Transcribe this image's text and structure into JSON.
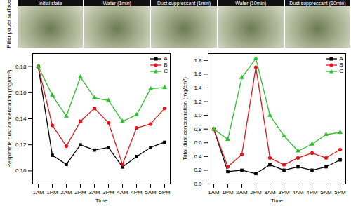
{
  "panel_label": "Filter paper surface",
  "photos": [
    "Initial state",
    "Water (1min)",
    "Dust suppressant (1min)",
    "Water (10min)",
    "Dust suppressant (10min)"
  ],
  "chart_data": [
    {
      "type": "line",
      "x_label": "Time",
      "y_label": "Respirable dust concentration (mg/cm³)",
      "categories": [
        "1AM",
        "1PM",
        "2AM",
        "2PM",
        "3AM",
        "3PM",
        "4AM",
        "4PM",
        "5AM",
        "5PM"
      ],
      "series": [
        {
          "name": "A",
          "color": "#000000",
          "marker": "square",
          "values": [
            0.18,
            0.112,
            0.105,
            0.12,
            0.116,
            0.118,
            0.103,
            0.111,
            0.118,
            0.122
          ]
        },
        {
          "name": "B",
          "color": "#e3161b",
          "marker": "circle",
          "values": [
            0.18,
            0.135,
            0.119,
            0.138,
            0.148,
            0.137,
            0.105,
            0.133,
            0.136,
            0.148
          ]
        },
        {
          "name": "C",
          "color": "#2fbf2f",
          "marker": "triangle",
          "values": [
            0.18,
            0.158,
            0.142,
            0.172,
            0.156,
            0.154,
            0.138,
            0.143,
            0.163,
            0.164
          ]
        }
      ],
      "ylim": [
        0.09,
        0.19
      ],
      "yticks": [
        {
          "value": 0.1,
          "label": "0.10"
        },
        0.12,
        0.14,
        0.16,
        0.18
      ],
      "grid": false,
      "legend": "top-right"
    },
    {
      "type": "line",
      "x_label": "Time",
      "y_label": "Total dust concentration (mg/cm³)",
      "categories": [
        "1AM",
        "1PM",
        "2AM",
        "2PM",
        "3AM",
        "3PM",
        "4AM",
        "4PM",
        "5AM",
        "5PM"
      ],
      "series": [
        {
          "name": "A",
          "color": "#000000",
          "marker": "square",
          "values": [
            0.8,
            0.18,
            0.2,
            0.15,
            0.28,
            0.2,
            0.25,
            0.2,
            0.25,
            0.35
          ]
        },
        {
          "name": "B",
          "color": "#e3161b",
          "marker": "circle",
          "values": [
            0.8,
            0.25,
            0.43,
            1.7,
            0.38,
            0.28,
            0.38,
            0.45,
            0.38,
            0.5
          ]
        },
        {
          "name": "C",
          "color": "#2fbf2f",
          "marker": "triangle",
          "values": [
            0.8,
            0.65,
            1.55,
            1.83,
            1.0,
            0.7,
            0.48,
            0.58,
            0.72,
            0.75
          ]
        }
      ],
      "ylim": [
        0,
        1.9
      ],
      "yticks": [
        {
          "value": 0,
          "label": "0.0"
        },
        0.2,
        0.4,
        0.6,
        0.8,
        {
          "value": 1,
          "label": "1.0"
        },
        1.2,
        1.4,
        1.6,
        1.8
      ],
      "grid": false,
      "legend": "top-right"
    }
  ]
}
